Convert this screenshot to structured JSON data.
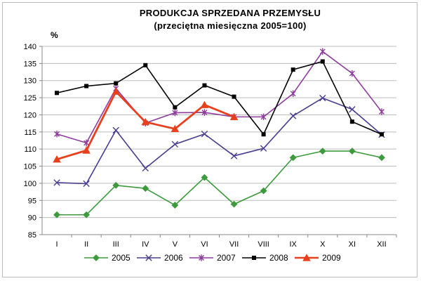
{
  "chart_data": {
    "type": "line",
    "title": "PRODUKCJA  SPRZEDANA  PRZEMYSŁU",
    "subtitle": "(przeciętna miesięczna 2005=100)",
    "ylabel": "%",
    "xlabel": "",
    "ylim": [
      85,
      140
    ],
    "ystep": 5,
    "grid": "horizontal",
    "legend": "bottom",
    "categories": [
      "I",
      "II",
      "III",
      "IV",
      "V",
      "VI",
      "VII",
      "VIII",
      "IX",
      "X",
      "XI",
      "XII"
    ],
    "series": [
      {
        "name": "2005",
        "color": "#3d9a3d",
        "marker": "diamond",
        "values": [
          90.8,
          90.8,
          99.4,
          98.5,
          93.6,
          101.7,
          93.9,
          97.8,
          107.5,
          109.4,
          109.4,
          107.5
        ]
      },
      {
        "name": "2006",
        "color": "#4a3d8f",
        "marker": "x",
        "values": [
          100.2,
          99.9,
          115.5,
          104.4,
          111.4,
          114.4,
          108.0,
          110.2,
          119.7,
          124.9,
          121.6,
          114.2
        ]
      },
      {
        "name": "2007",
        "color": "#8e3b9e",
        "marker": "star",
        "values": [
          114.4,
          111.8,
          127.7,
          117.6,
          120.6,
          120.7,
          119.4,
          119.4,
          126.2,
          138.5,
          132.1,
          120.9
        ]
      },
      {
        "name": "2008",
        "color": "#000000",
        "marker": "square",
        "values": [
          126.4,
          128.4,
          129.2,
          134.5,
          122.2,
          128.6,
          125.3,
          114.3,
          133.2,
          135.6,
          118.0,
          114.3
        ]
      },
      {
        "name": "2009",
        "color": "#e8401c",
        "marker": "triangle",
        "values": [
          107.0,
          109.6,
          126.8,
          117.9,
          115.9,
          122.9,
          119.4,
          null,
          null,
          null,
          null,
          null
        ]
      }
    ]
  }
}
